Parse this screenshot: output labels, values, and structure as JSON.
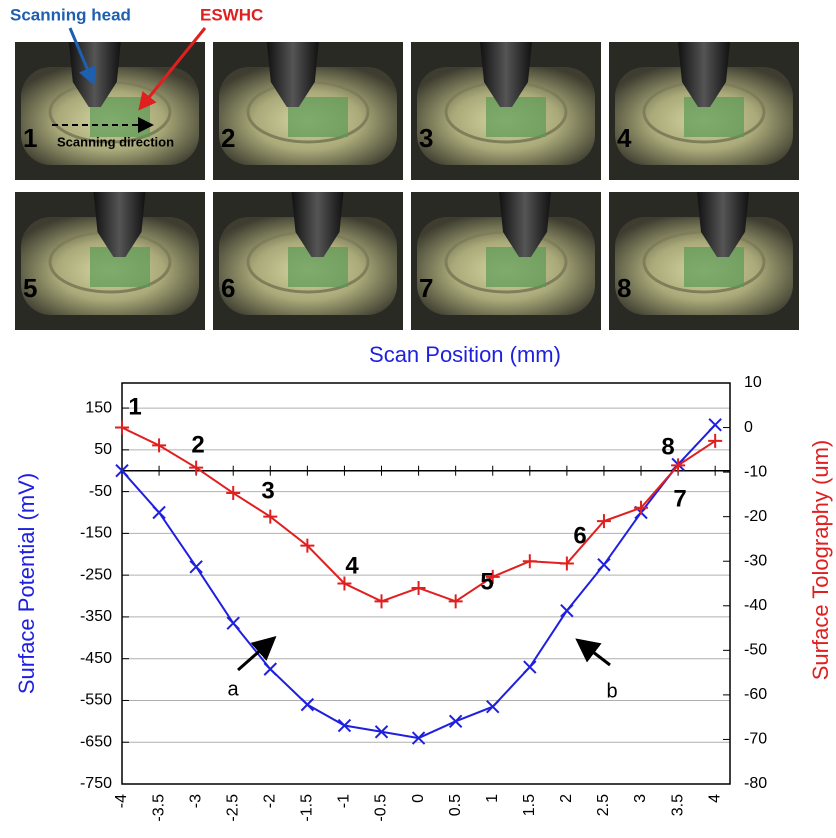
{
  "photo_panel": {
    "labels": [
      "Scanning head",
      "ESWHC",
      "Scanning direction"
    ],
    "panels": [
      "1",
      "2",
      "3",
      "4",
      "5",
      "6",
      "7",
      "8"
    ]
  },
  "chart_data": {
    "type": "line",
    "x_label": "Scan Position (mm)",
    "y_label": "Surface Potential (mV)",
    "y2_label": "Surface Tolography (um)",
    "x": [
      -4,
      -3.5,
      -3,
      -2.5,
      -2,
      -1.5,
      -1,
      -0.5,
      0,
      0.5,
      1,
      1.5,
      2,
      2.5,
      3,
      3.5,
      4
    ],
    "xlim": [
      -4,
      4.2
    ],
    "xticks": [
      -4,
      -3.5,
      -3,
      -2.5,
      -2,
      -1.5,
      -1,
      -0.5,
      0,
      0.5,
      1,
      1.5,
      2,
      2.5,
      3,
      3.5,
      4
    ],
    "ylim": [
      -750,
      210
    ],
    "yticks": [
      150,
      50,
      -50,
      -150,
      -250,
      -350,
      -450,
      -550,
      -650,
      -750
    ],
    "y2lim": [
      -80,
      10
    ],
    "y2ticks": [
      10,
      0,
      -10,
      -20,
      -30,
      -40,
      -50,
      -60,
      -70,
      -80
    ],
    "grid": true,
    "series": [
      {
        "name": "a",
        "color": "#1f1fe0",
        "marker": "x",
        "values": [
          0,
          -100,
          -230,
          -365,
          -475,
          -560,
          -610,
          -625,
          -640,
          -600,
          -565,
          -470,
          -335,
          -225,
          -100,
          15,
          110
        ]
      },
      {
        "name": "b",
        "color": "#e01f1f",
        "marker": "+",
        "axis": "y2",
        "values": [
          0,
          -4,
          -9,
          -14.7,
          -20,
          -26.5,
          -35,
          -39,
          -36,
          -39,
          -33.5,
          -30,
          -30.5,
          -21,
          -18,
          -8.5,
          -3
        ]
      }
    ],
    "annotations": [
      "1",
      "2",
      "3",
      "4",
      "5",
      "6",
      "7",
      "8"
    ]
  }
}
